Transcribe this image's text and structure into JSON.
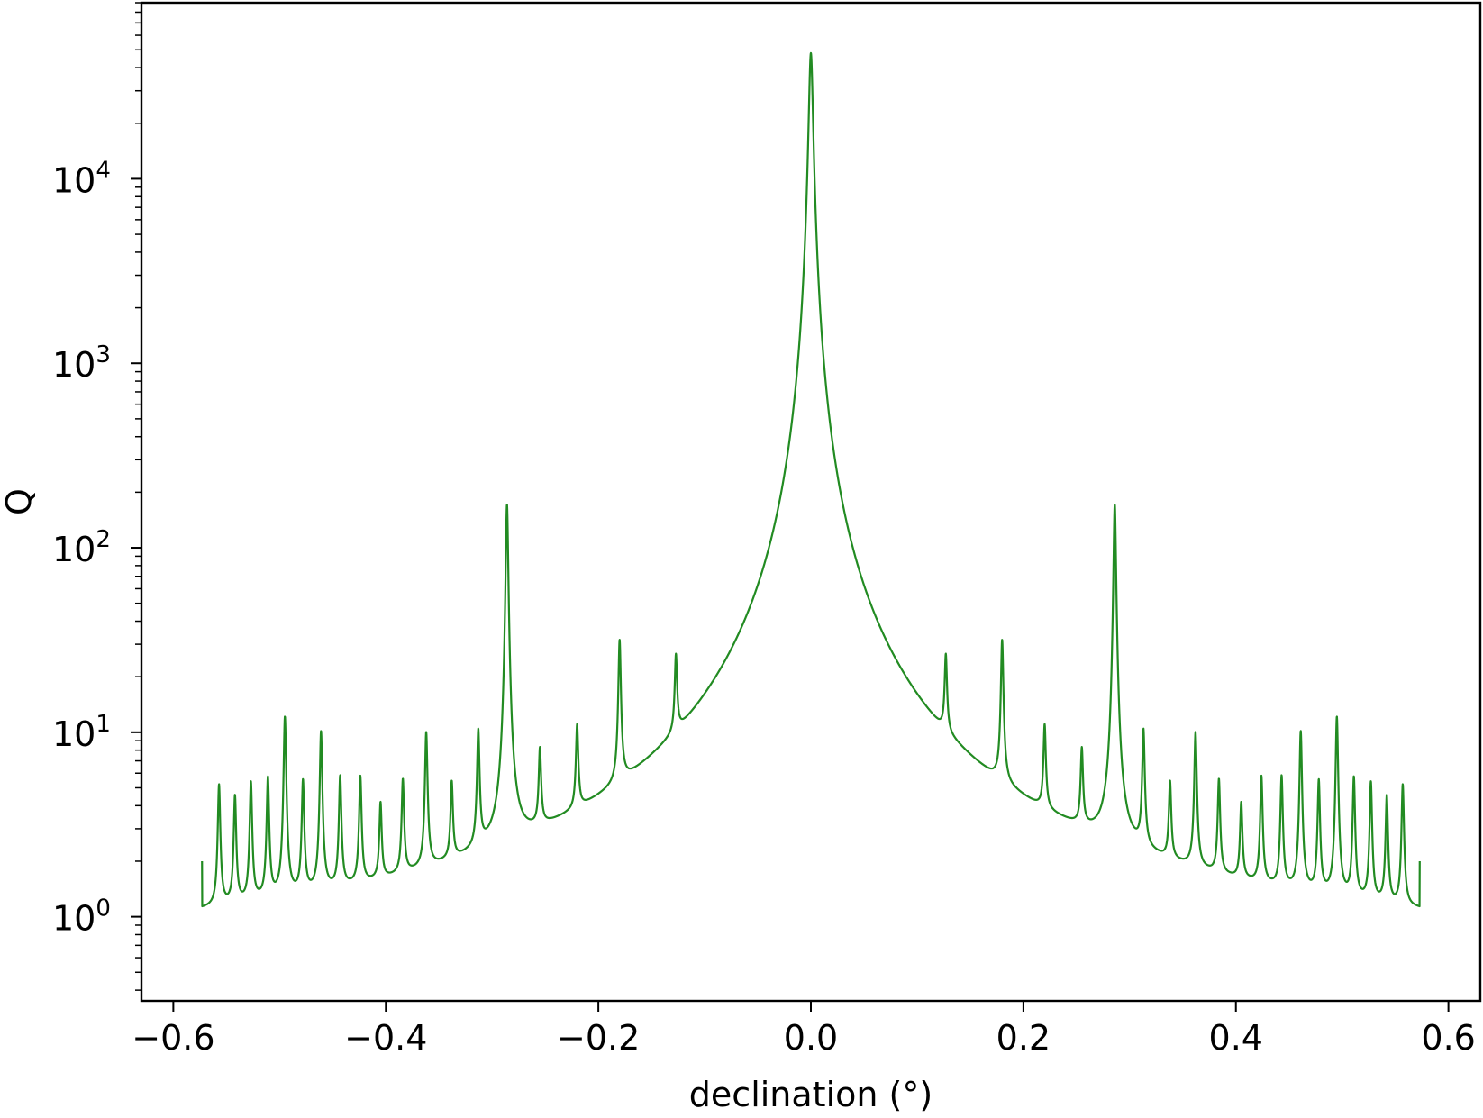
{
  "chart_data": {
    "type": "line",
    "title": "",
    "xlabel": "declination (°)",
    "ylabel": "Q",
    "xlim": [
      -0.63,
      0.63
    ],
    "ylim": [
      0.35,
      90000
    ],
    "yscale": "log",
    "grid": false,
    "legend": "none",
    "x_ticks": [
      -0.6,
      -0.4,
      -0.2,
      0.0,
      0.2,
      0.4,
      0.6
    ],
    "x_tick_labels": [
      "−0.6",
      "−0.4",
      "−0.2",
      "0.0",
      "0.2",
      "0.4",
      "0.6"
    ],
    "y_ticks": [
      1,
      10,
      100,
      1000,
      10000
    ],
    "y_tick_labels": [
      {
        "base": "10",
        "exp": "0"
      },
      {
        "base": "10",
        "exp": "1"
      },
      {
        "base": "10",
        "exp": "2"
      },
      {
        "base": "10",
        "exp": "3"
      },
      {
        "base": "10",
        "exp": "4"
      }
    ],
    "series": [
      {
        "color": "#228b22",
        "x_range": [
          -0.573,
          0.573
        ],
        "baseline_min": 0.63,
        "central_peak": {
          "x": 0.0,
          "y": 48000
        },
        "resonances": [
          {
            "x": 0.127,
            "y": 17
          },
          {
            "x": 0.18,
            "y": 27
          },
          {
            "x": 0.22,
            "y": 7.8
          },
          {
            "x": 0.255,
            "y": 5.7
          },
          {
            "x": 0.286,
            "y": 170
          },
          {
            "x": 0.313,
            "y": 8.6
          },
          {
            "x": 0.338,
            "y": 4.0
          },
          {
            "x": 0.362,
            "y": 8.8
          },
          {
            "x": 0.384,
            "y": 4.5
          },
          {
            "x": 0.405,
            "y": 3.2
          },
          {
            "x": 0.424,
            "y": 4.9
          },
          {
            "x": 0.443,
            "y": 5.0
          },
          {
            "x": 0.461,
            "y": 9.4
          },
          {
            "x": 0.478,
            "y": 4.8
          },
          {
            "x": 0.495,
            "y": 11.5
          },
          {
            "x": 0.511,
            "y": 5.1
          },
          {
            "x": 0.527,
            "y": 4.8
          },
          {
            "x": 0.542,
            "y": 4.0
          },
          {
            "x": 0.557,
            "y": 4.7
          }
        ],
        "symmetric": true,
        "end_value": 2.0
      }
    ]
  }
}
